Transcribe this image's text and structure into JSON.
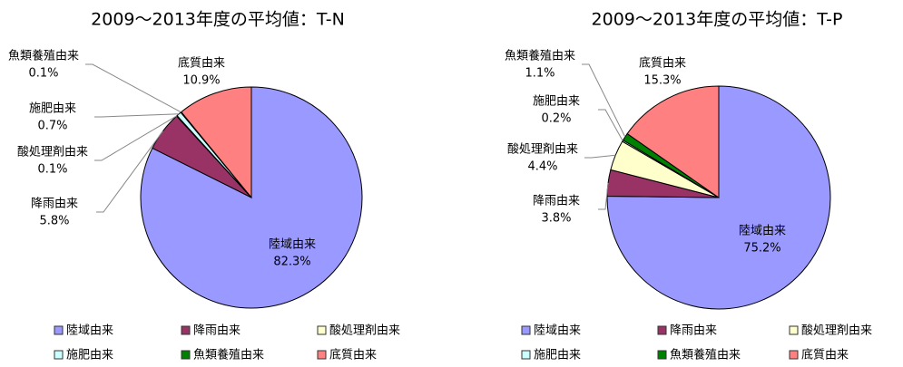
{
  "chart_data": [
    {
      "type": "pie",
      "title": "2009～2013年度の平均値：T-N",
      "categories": [
        "陸域由来",
        "降雨由来",
        "酸処理剤由来",
        "施肥由来",
        "魚類養殖由来",
        "底質由来"
      ],
      "values": [
        82.3,
        5.8,
        0.1,
        0.7,
        0.1,
        10.9
      ],
      "value_labels": [
        "82.3%",
        "5.8%",
        "0.1%",
        "0.7%",
        "0.1%",
        "10.9%"
      ],
      "colors": [
        "#9999ff",
        "#993366",
        "#ffffcc",
        "#ccffff",
        "#008000",
        "#ff8080"
      ]
    },
    {
      "type": "pie",
      "title": "2009～2013年度の平均値：T-P",
      "categories": [
        "陸域由来",
        "降雨由来",
        "酸処理剤由来",
        "施肥由来",
        "魚類養殖由来",
        "底質由来"
      ],
      "values": [
        75.2,
        3.8,
        4.4,
        0.2,
        1.1,
        15.3
      ],
      "value_labels": [
        "75.2%",
        "3.8%",
        "4.4%",
        "0.2%",
        "1.1%",
        "15.3%"
      ],
      "colors": [
        "#9999ff",
        "#993366",
        "#ffffcc",
        "#ccffff",
        "#008000",
        "#ff8080"
      ]
    }
  ]
}
